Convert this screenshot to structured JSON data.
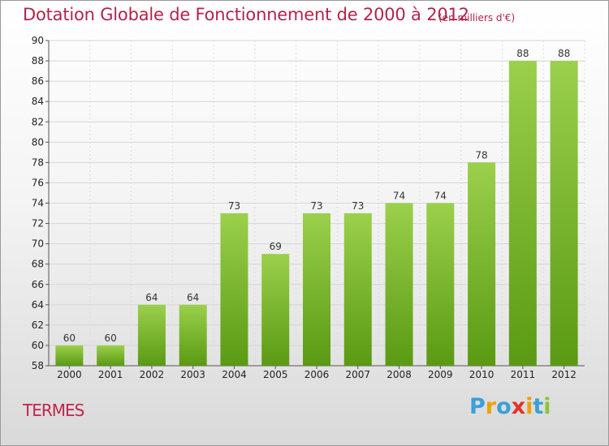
{
  "header": {
    "title": "Dotation Globale de Fonctionnement de 2000 à 2012",
    "unit": "(en milliers d'€)"
  },
  "footer": {
    "place": "TERMES",
    "logo": [
      "P",
      "r",
      "o",
      "x",
      "i",
      "t",
      "i"
    ]
  },
  "colors": {
    "title": "#b2244a",
    "bar_top": "#9bd04b",
    "bar_bottom": "#5a9a13",
    "logo_letters": [
      "#3aa0d8",
      "#f0a000",
      "#3aa0d8",
      "#e8302a",
      "#f0a000",
      "#3aa0d8",
      "#8cc43a"
    ]
  },
  "chart_data": {
    "type": "bar",
    "title": "Dotation Globale de Fonctionnement de 2000 à 2012",
    "xlabel": "",
    "ylabel": "",
    "categories": [
      "2000",
      "2001",
      "2002",
      "2003",
      "2004",
      "2005",
      "2006",
      "2007",
      "2008",
      "2009",
      "2010",
      "2011",
      "2012"
    ],
    "values": [
      60,
      60,
      64,
      64,
      73,
      69,
      73,
      73,
      74,
      74,
      78,
      88,
      88
    ],
    "ylim": [
      58,
      90
    ],
    "yticks": [
      58,
      60,
      62,
      64,
      66,
      68,
      70,
      72,
      74,
      76,
      78,
      80,
      82,
      84,
      86,
      88,
      90
    ],
    "grid": true,
    "legend": "none"
  }
}
